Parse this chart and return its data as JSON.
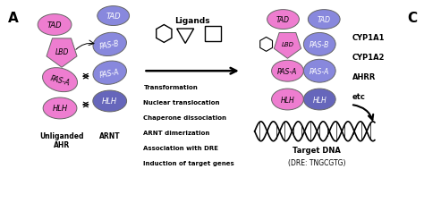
{
  "panel_label_A": "A",
  "panel_label_C": "C",
  "background_color": "#ffffff",
  "pink_color": "#ee7dd0",
  "pink_mid": "#e898d0",
  "purple_color": "#8888dd",
  "purple_dark": "#6666bb",
  "process_steps": [
    "Transformation",
    "Nuclear translocation",
    "Chaperone dissociation",
    "ARNT dimerization",
    "Association with DRE",
    "Induction of target genes"
  ],
  "ligands_label": "Ligands",
  "target_dna_label": "Target DNA",
  "dre_label": "(DRE: TNGCGTG)",
  "unliganded_label": "Unliganded\nAHR",
  "arnt_label": "ARNT",
  "gene_labels": [
    "CYP1A1",
    "CYP1A2",
    "AHRR",
    "etc"
  ]
}
